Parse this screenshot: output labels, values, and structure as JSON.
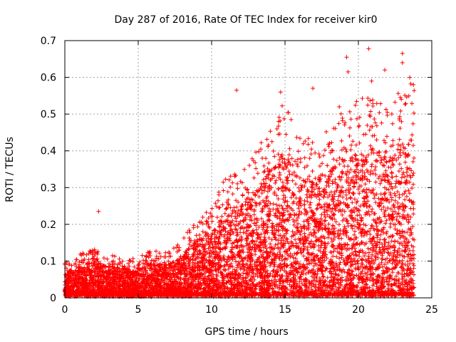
{
  "chart_data": {
    "type": "scatter",
    "title": "Day 287 of 2016, Rate Of TEC Index for receiver kir0",
    "xlabel": "GPS time / hours",
    "ylabel": "ROTI / TECUs",
    "xlim": [
      0,
      25
    ],
    "ylim": [
      0,
      0.7
    ],
    "xticks": [
      "0",
      "5",
      "10",
      "15",
      "20",
      "25"
    ],
    "yticks": [
      "0",
      "0.1",
      "0.2",
      "0.3",
      "0.4",
      "0.5",
      "0.6",
      "0.7"
    ],
    "grid": true,
    "marker": "+",
    "color": "#ff0000",
    "series": [
      {
        "name": "ROTI",
        "envelope_hours": [
          0,
          1,
          2,
          3,
          4,
          5,
          6,
          7,
          8,
          9,
          10,
          11,
          12,
          13,
          14,
          15,
          16,
          17,
          18,
          19,
          20,
          21,
          22,
          23,
          23.8
        ],
        "typical_max": [
          0.07,
          0.09,
          0.1,
          0.09,
          0.08,
          0.08,
          0.1,
          0.09,
          0.12,
          0.16,
          0.18,
          0.25,
          0.25,
          0.3,
          0.35,
          0.4,
          0.33,
          0.32,
          0.35,
          0.38,
          0.4,
          0.42,
          0.4,
          0.42,
          0.45
        ],
        "peaks": [
          {
            "x": 2.3,
            "y": 0.235
          },
          {
            "x": 11.7,
            "y": 0.565
          },
          {
            "x": 14.7,
            "y": 0.56
          },
          {
            "x": 16.9,
            "y": 0.57
          },
          {
            "x": 18.7,
            "y": 0.52
          },
          {
            "x": 19.2,
            "y": 0.655
          },
          {
            "x": 19.3,
            "y": 0.615
          },
          {
            "x": 20.7,
            "y": 0.678
          },
          {
            "x": 20.9,
            "y": 0.59
          },
          {
            "x": 21.8,
            "y": 0.62
          },
          {
            "x": 23.0,
            "y": 0.665
          },
          {
            "x": 23.0,
            "y": 0.64
          },
          {
            "x": 23.5,
            "y": 0.6
          }
        ]
      }
    ]
  }
}
